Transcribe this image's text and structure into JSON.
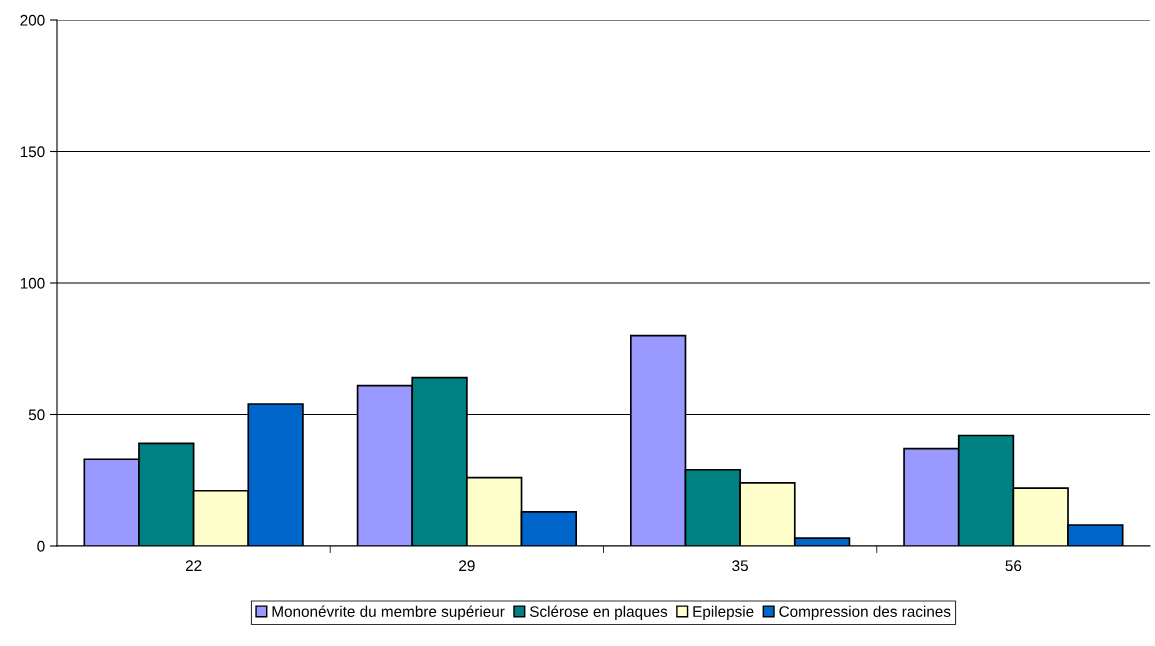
{
  "chart_data": {
    "type": "bar",
    "categories": [
      "22",
      "29",
      "35",
      "56"
    ],
    "series": [
      {
        "name": "Mononévrite du membre supérieur",
        "color": "#9999ff",
        "values": [
          33,
          61,
          80,
          37
        ]
      },
      {
        "name": "Sclérose en plaques",
        "color": "#008080",
        "values": [
          39,
          64,
          29,
          42
        ]
      },
      {
        "name": "Epilepsie",
        "color": "#ffffcc",
        "values": [
          21,
          26,
          24,
          22
        ]
      },
      {
        "name": "Compression des racines",
        "color": "#0066cc",
        "values": [
          54,
          13,
          3,
          8
        ]
      }
    ],
    "ylim": [
      0,
      200
    ],
    "yticks": [
      0,
      50,
      100,
      150,
      200
    ],
    "grid": "y",
    "legend": "bottom"
  }
}
